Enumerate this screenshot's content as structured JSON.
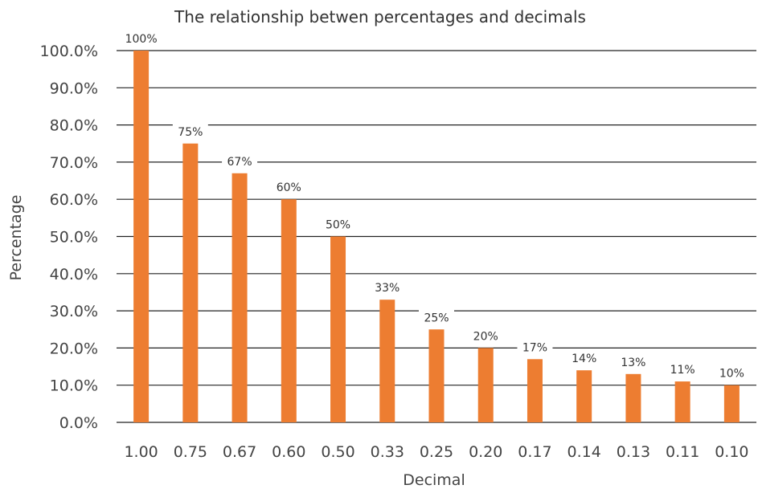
{
  "chart_data": {
    "type": "bar",
    "title": "The relationship betwen percentages and decimals",
    "xlabel": "Decimal",
    "ylabel": "Percentage",
    "categories": [
      "1.00",
      "0.75",
      "0.67",
      "0.60",
      "0.50",
      "0.33",
      "0.25",
      "0.20",
      "0.17",
      "0.14",
      "0.13",
      "0.11",
      "0.10"
    ],
    "values": [
      100,
      75,
      67,
      60,
      50,
      33,
      25,
      20,
      17,
      14,
      13,
      11,
      10
    ],
    "data_labels": [
      "100%",
      "75%",
      "67%",
      "60%",
      "50%",
      "33%",
      "25%",
      "20%",
      "17%",
      "14%",
      "13%",
      "11%",
      "10%"
    ],
    "yticks": [
      0,
      10,
      20,
      30,
      40,
      50,
      60,
      70,
      80,
      90,
      100
    ],
    "ytick_labels": [
      "0.0%",
      "10.0%",
      "20.0%",
      "30.0%",
      "40.0%",
      "50.0%",
      "60.0%",
      "70.0%",
      "80.0%",
      "90.0%",
      "100.0%"
    ],
    "ylim": [
      0,
      100
    ],
    "grid": true,
    "legend": "none",
    "bar_color": "#ED7D31"
  }
}
